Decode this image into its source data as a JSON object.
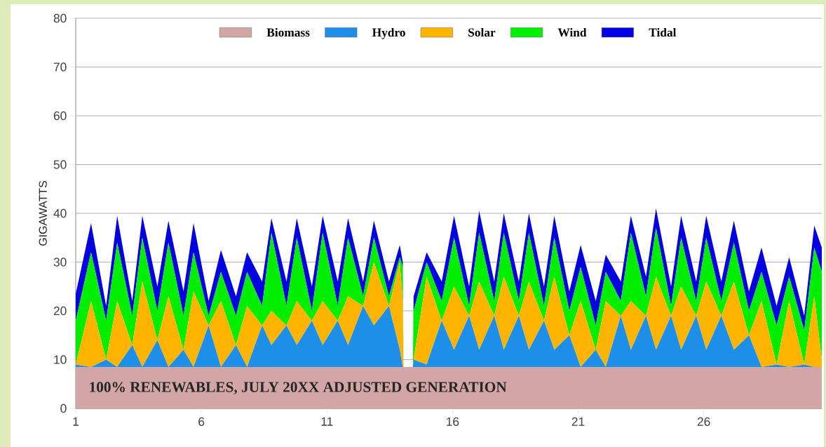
{
  "chart_data": {
    "type": "area",
    "stacked": true,
    "ylabel": "GIGAWATTS",
    "annotations": [
      "100% RENEWABLES, JULY 20XX ADJUSTED GENERATION"
    ],
    "xlim": [
      1,
      30.7
    ],
    "xticks": [
      1,
      6,
      11,
      16,
      21,
      26
    ],
    "ylim": [
      0,
      80
    ],
    "yticks": [
      0,
      10,
      20,
      30,
      40,
      50,
      60,
      70,
      80
    ],
    "grid": "y",
    "legend": "top",
    "x": [
      1.0,
      1.61,
      2.21,
      2.65,
      3.25,
      3.65,
      4.25,
      4.69,
      5.29,
      5.69,
      6.29,
      6.78,
      7.38,
      7.82,
      8.42,
      8.79,
      9.39,
      9.8,
      10.4,
      10.83,
      11.43,
      11.84,
      12.44,
      12.87,
      13.47,
      13.9,
      14.02,
      14.05,
      14.42,
      14.45,
      14.97,
      15.57,
      16.06,
      16.66,
      17.06,
      17.66,
      18.04,
      18.64,
      19.04,
      19.64,
      20.05,
      20.65,
      21.1,
      21.7,
      22.1,
      22.7,
      23.1,
      23.7,
      24.1,
      24.7,
      25.1,
      25.7,
      26.1,
      26.7,
      27.2,
      27.8,
      28.3,
      28.9,
      29.4,
      30.0,
      30.4,
      30.7
    ],
    "series": [
      {
        "name": "Biomass",
        "color": "#d2a6a6",
        "values": [
          8.5,
          8.5,
          8.5,
          8.5,
          8.5,
          8.5,
          8.5,
          8.5,
          8.5,
          8.5,
          8.5,
          8.5,
          8.5,
          8.5,
          8.5,
          8.5,
          8.5,
          8.5,
          8.5,
          8.5,
          8.5,
          8.5,
          8.5,
          8.5,
          8.5,
          8.5,
          8.5,
          8.5,
          8.5,
          8.5,
          8.5,
          8.5,
          8.5,
          8.5,
          8.5,
          8.5,
          8.5,
          8.5,
          8.5,
          8.5,
          8.5,
          8.5,
          8.5,
          8.5,
          8.5,
          8.5,
          8.5,
          8.5,
          8.5,
          8.5,
          8.5,
          8.5,
          8.5,
          8.5,
          8.5,
          8.5,
          8.5,
          8.5,
          8.5,
          8.5,
          8.5,
          8.5
        ]
      },
      {
        "name": "Hydro",
        "color": "#1e8fe8",
        "values": [
          0.5,
          0,
          1.5,
          0,
          4.5,
          0,
          5.5,
          0,
          3.5,
          0,
          8.5,
          0,
          4.5,
          0,
          8.5,
          4.5,
          8.5,
          4.5,
          9.5,
          4.5,
          9.5,
          4.5,
          12.5,
          8.5,
          12.5,
          3.5,
          0,
          0,
          0,
          1.5,
          0.5,
          9.5,
          3.5,
          10.5,
          3.5,
          10.5,
          3.5,
          10.5,
          3.5,
          9.5,
          3.5,
          6.5,
          0,
          3.5,
          0,
          10.5,
          3.5,
          10.5,
          3.5,
          10.5,
          3.5,
          10.5,
          3.5,
          10.5,
          3.5,
          6.5,
          0,
          0.5,
          0,
          0.5,
          0,
          0
        ]
      },
      {
        "name": "Solar",
        "color": "#ffb400",
        "values": [
          0,
          13.5,
          0,
          13.5,
          0,
          17.5,
          0,
          14.5,
          0,
          15.5,
          0,
          13.5,
          0,
          12.5,
          0,
          7,
          0,
          9,
          0,
          9,
          0,
          10,
          0,
          13,
          0,
          18,
          13.5,
          0,
          0,
          0,
          18,
          0,
          13,
          0,
          14,
          0,
          15,
          0,
          14,
          0,
          15,
          0,
          13.5,
          0,
          13.5,
          0,
          10,
          0,
          15,
          0,
          13,
          0,
          14,
          0,
          14,
          0,
          13.5,
          0,
          13.5,
          0,
          14.5,
          1.5
        ]
      },
      {
        "name": "Wind",
        "color": "#00ee00",
        "values": [
          9,
          10,
          8,
          12,
          6,
          9,
          6,
          11,
          7,
          8,
          2,
          6,
          6,
          7,
          4,
          16,
          4,
          13,
          2,
          14,
          3,
          12,
          2,
          5,
          2,
          1,
          7,
          0,
          0,
          10,
          3,
          4,
          10,
          2,
          10,
          3,
          9,
          3,
          10,
          3,
          8,
          5,
          7,
          5,
          6,
          3,
          14,
          4,
          10,
          2,
          10,
          3,
          9,
          3,
          8,
          5,
          6,
          8,
          5,
          7,
          10,
          18
        ]
      },
      {
        "name": "Tidal",
        "color": "#0000e0",
        "values": [
          5.5,
          6,
          3,
          5.5,
          3,
          4.5,
          5,
          4.5,
          5,
          6,
          3,
          4.5,
          4,
          4,
          5,
          3,
          5,
          4,
          5,
          3.5,
          5,
          4,
          3,
          3.5,
          3,
          2.5,
          1,
          0,
          0,
          3,
          2,
          4,
          4.5,
          4,
          4.5,
          4,
          4,
          4,
          4,
          4,
          4.5,
          4,
          4.5,
          5,
          3.5,
          4,
          3.5,
          4,
          4,
          4,
          4.5,
          4,
          4.5,
          4,
          4.5,
          4,
          5,
          4,
          4,
          3,
          4.5,
          5
        ]
      }
    ]
  }
}
